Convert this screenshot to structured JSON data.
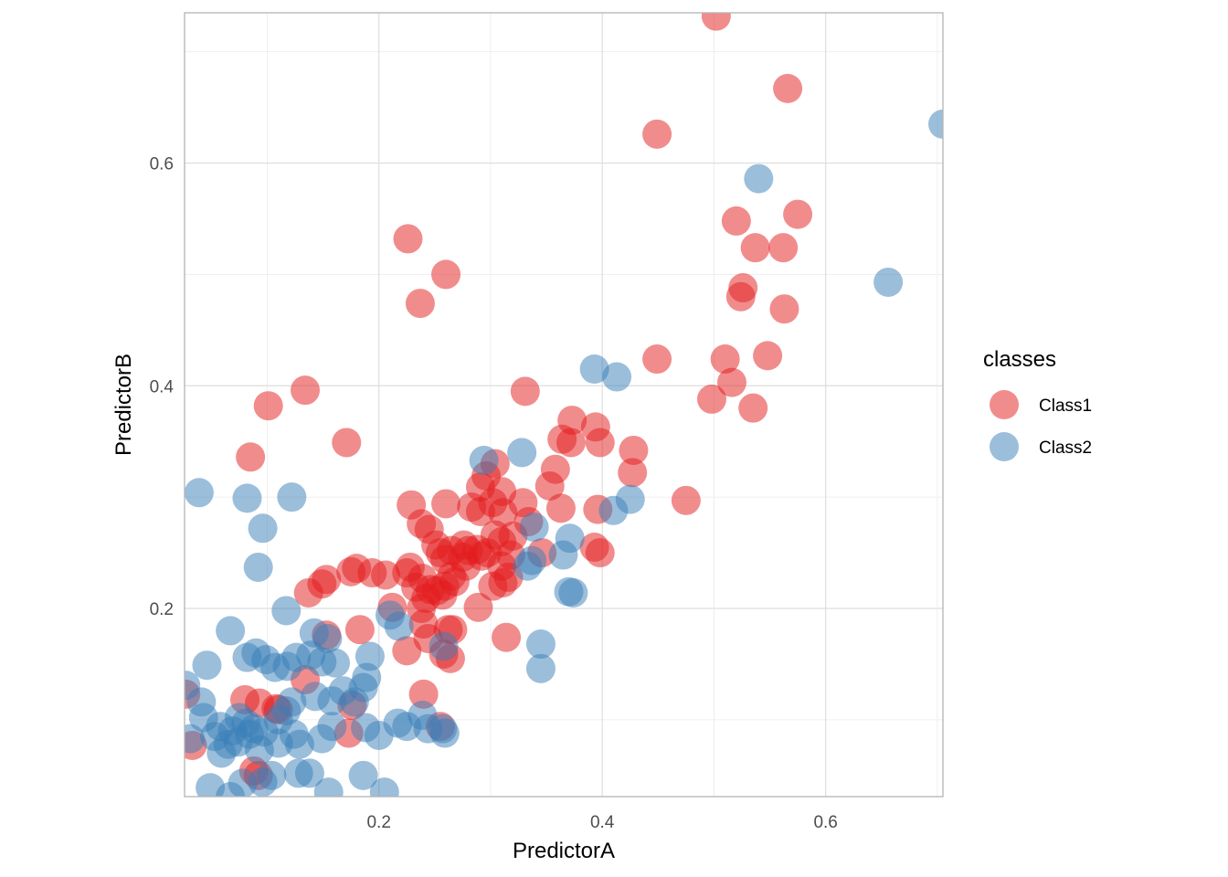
{
  "chart_data": {
    "type": "scatter",
    "title": "",
    "xlabel": "PredictorA",
    "ylabel": "PredictorB",
    "xlim": [
      0.026,
      0.705
    ],
    "ylim": [
      0.031,
      0.735
    ],
    "x_ticks": [
      0.2,
      0.4,
      0.6
    ],
    "y_ticks": [
      0.2,
      0.4,
      0.6
    ],
    "x_tick_labels": [
      "0.2",
      "0.4",
      "0.6"
    ],
    "y_tick_labels": [
      "0.2",
      "0.4",
      "0.6"
    ],
    "grid": true,
    "legend": {
      "title": "classes",
      "position": "right",
      "entries": [
        "Class1",
        "Class2"
      ]
    },
    "series": [
      {
        "name": "Class1",
        "color": "#e41a1c",
        "opacity": 0.5,
        "points": [
          [
            0.502,
            0.732
          ],
          [
            0.566,
            0.667
          ],
          [
            0.449,
            0.626
          ],
          [
            0.575,
            0.554
          ],
          [
            0.52,
            0.548
          ],
          [
            0.562,
            0.524
          ],
          [
            0.537,
            0.524
          ],
          [
            0.226,
            0.532
          ],
          [
            0.26,
            0.5
          ],
          [
            0.237,
            0.474
          ],
          [
            0.526,
            0.488
          ],
          [
            0.524,
            0.48
          ],
          [
            0.563,
            0.469
          ],
          [
            0.449,
            0.424
          ],
          [
            0.51,
            0.424
          ],
          [
            0.548,
            0.427
          ],
          [
            0.516,
            0.403
          ],
          [
            0.498,
            0.388
          ],
          [
            0.535,
            0.38
          ],
          [
            0.134,
            0.396
          ],
          [
            0.101,
            0.382
          ],
          [
            0.331,
            0.395
          ],
          [
            0.085,
            0.336
          ],
          [
            0.171,
            0.349
          ],
          [
            0.373,
            0.369
          ],
          [
            0.394,
            0.363
          ],
          [
            0.398,
            0.349
          ],
          [
            0.372,
            0.349
          ],
          [
            0.364,
            0.352
          ],
          [
            0.428,
            0.342
          ],
          [
            0.427,
            0.322
          ],
          [
            0.353,
            0.31
          ],
          [
            0.358,
            0.325
          ],
          [
            0.304,
            0.33
          ],
          [
            0.296,
            0.319
          ],
          [
            0.291,
            0.309
          ],
          [
            0.31,
            0.305
          ],
          [
            0.329,
            0.295
          ],
          [
            0.475,
            0.297
          ],
          [
            0.396,
            0.289
          ],
          [
            0.363,
            0.29
          ],
          [
            0.302,
            0.295
          ],
          [
            0.291,
            0.287
          ],
          [
            0.283,
            0.291
          ],
          [
            0.311,
            0.286
          ],
          [
            0.245,
            0.271
          ],
          [
            0.238,
            0.276
          ],
          [
            0.251,
            0.257
          ],
          [
            0.229,
            0.293
          ],
          [
            0.26,
            0.294
          ],
          [
            0.334,
            0.278
          ],
          [
            0.31,
            0.26
          ],
          [
            0.304,
            0.266
          ],
          [
            0.32,
            0.265
          ],
          [
            0.297,
            0.25
          ],
          [
            0.28,
            0.252
          ],
          [
            0.276,
            0.257
          ],
          [
            0.265,
            0.252
          ],
          [
            0.259,
            0.244
          ],
          [
            0.292,
            0.247
          ],
          [
            0.288,
            0.253
          ],
          [
            0.275,
            0.246
          ],
          [
            0.255,
            0.25
          ],
          [
            0.393,
            0.255
          ],
          [
            0.398,
            0.25
          ],
          [
            0.346,
            0.25
          ],
          [
            0.318,
            0.248
          ],
          [
            0.31,
            0.238
          ],
          [
            0.278,
            0.238
          ],
          [
            0.265,
            0.229
          ],
          [
            0.268,
            0.224
          ],
          [
            0.259,
            0.22
          ],
          [
            0.252,
            0.216
          ],
          [
            0.246,
            0.217
          ],
          [
            0.257,
            0.212
          ],
          [
            0.242,
            0.209
          ],
          [
            0.316,
            0.228
          ],
          [
            0.311,
            0.223
          ],
          [
            0.302,
            0.22
          ],
          [
            0.18,
            0.236
          ],
          [
            0.175,
            0.233
          ],
          [
            0.206,
            0.23
          ],
          [
            0.194,
            0.232
          ],
          [
            0.225,
            0.232
          ],
          [
            0.228,
            0.237
          ],
          [
            0.153,
            0.226
          ],
          [
            0.149,
            0.222
          ],
          [
            0.137,
            0.214
          ],
          [
            0.239,
            0.227
          ],
          [
            0.233,
            0.219
          ],
          [
            0.238,
            0.2
          ],
          [
            0.289,
            0.201
          ],
          [
            0.212,
            0.201
          ],
          [
            0.24,
            0.186
          ],
          [
            0.262,
            0.181
          ],
          [
            0.266,
            0.181
          ],
          [
            0.314,
            0.174
          ],
          [
            0.153,
            0.176
          ],
          [
            0.183,
            0.181
          ],
          [
            0.225,
            0.162
          ],
          [
            0.244,
            0.173
          ],
          [
            0.258,
            0.159
          ],
          [
            0.264,
            0.155
          ],
          [
            0.134,
            0.136
          ],
          [
            0.24,
            0.123
          ],
          [
            0.08,
            0.118
          ],
          [
            0.093,
            0.115
          ],
          [
            0.108,
            0.11
          ],
          [
            0.11,
            0.109
          ],
          [
            0.176,
            0.113
          ],
          [
            0.173,
            0.088
          ],
          [
            0.033,
            0.077
          ],
          [
            0.088,
            0.054
          ],
          [
            0.092,
            0.05
          ],
          [
            0.027,
            0.123
          ],
          [
            0.255,
            0.094
          ]
        ]
      },
      {
        "name": "Class2",
        "color": "#377eb8",
        "opacity": 0.5,
        "points": [
          [
            0.705,
            0.635
          ],
          [
            0.54,
            0.586
          ],
          [
            0.656,
            0.493
          ],
          [
            0.393,
            0.415
          ],
          [
            0.413,
            0.408
          ],
          [
            0.425,
            0.298
          ],
          [
            0.41,
            0.288
          ],
          [
            0.328,
            0.34
          ],
          [
            0.294,
            0.333
          ],
          [
            0.039,
            0.304
          ],
          [
            0.082,
            0.299
          ],
          [
            0.122,
            0.3
          ],
          [
            0.096,
            0.272
          ],
          [
            0.092,
            0.237
          ],
          [
            0.339,
            0.273
          ],
          [
            0.337,
            0.243
          ],
          [
            0.333,
            0.238
          ],
          [
            0.371,
            0.263
          ],
          [
            0.365,
            0.248
          ],
          [
            0.374,
            0.214
          ],
          [
            0.37,
            0.215
          ],
          [
            0.117,
            0.198
          ],
          [
            0.142,
            0.178
          ],
          [
            0.154,
            0.173
          ],
          [
            0.21,
            0.194
          ],
          [
            0.218,
            0.184
          ],
          [
            0.067,
            0.18
          ],
          [
            0.082,
            0.156
          ],
          [
            0.09,
            0.16
          ],
          [
            0.099,
            0.154
          ],
          [
            0.107,
            0.147
          ],
          [
            0.118,
            0.148
          ],
          [
            0.126,
            0.156
          ],
          [
            0.139,
            0.158
          ],
          [
            0.149,
            0.152
          ],
          [
            0.046,
            0.149
          ],
          [
            0.192,
            0.157
          ],
          [
            0.189,
            0.138
          ],
          [
            0.186,
            0.129
          ],
          [
            0.168,
            0.126
          ],
          [
            0.161,
            0.151
          ],
          [
            0.345,
            0.168
          ],
          [
            0.345,
            0.146
          ],
          [
            0.258,
            0.166
          ],
          [
            0.122,
            0.116
          ],
          [
            0.143,
            0.121
          ],
          [
            0.158,
            0.117
          ],
          [
            0.178,
            0.116
          ],
          [
            0.117,
            0.108
          ],
          [
            0.11,
            0.1
          ],
          [
            0.027,
            0.131
          ],
          [
            0.041,
            0.116
          ],
          [
            0.043,
            0.102
          ],
          [
            0.058,
            0.094
          ],
          [
            0.069,
            0.09
          ],
          [
            0.075,
            0.102
          ],
          [
            0.081,
            0.097
          ],
          [
            0.088,
            0.092
          ],
          [
            0.097,
            0.089
          ],
          [
            0.084,
            0.087
          ],
          [
            0.074,
            0.08
          ],
          [
            0.053,
            0.085
          ],
          [
            0.065,
            0.078
          ],
          [
            0.059,
            0.07
          ],
          [
            0.093,
            0.073
          ],
          [
            0.11,
            0.079
          ],
          [
            0.124,
            0.087
          ],
          [
            0.129,
            0.078
          ],
          [
            0.149,
            0.083
          ],
          [
            0.158,
            0.094
          ],
          [
            0.2,
            0.086
          ],
          [
            0.188,
            0.093
          ],
          [
            0.217,
            0.097
          ],
          [
            0.225,
            0.094
          ],
          [
            0.244,
            0.092
          ],
          [
            0.239,
            0.104
          ],
          [
            0.257,
            0.092
          ],
          [
            0.259,
            0.088
          ],
          [
            0.031,
            0.083
          ],
          [
            0.128,
            0.052
          ],
          [
            0.138,
            0.052
          ],
          [
            0.186,
            0.05
          ],
          [
            0.096,
            0.044
          ],
          [
            0.078,
            0.043
          ],
          [
            0.049,
            0.039
          ],
          [
            0.067,
            0.031
          ],
          [
            0.155,
            0.035
          ],
          [
            0.205,
            0.035
          ],
          [
            0.104,
            0.05
          ]
        ]
      }
    ]
  }
}
